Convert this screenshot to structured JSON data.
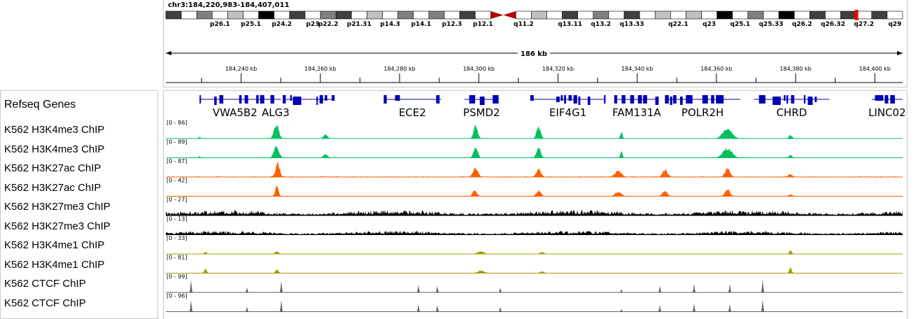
{
  "locus": "chr3:184,220,983-184,407,011",
  "view": {
    "start": 184220983,
    "end": 184407011
  },
  "span_label": "186 kb",
  "ideogram": {
    "bands": [
      {
        "stain": "gray75"
      },
      {
        "stain": "white"
      },
      {
        "stain": "gray50"
      },
      {
        "stain": "white",
        "label": "p26.1"
      },
      {
        "stain": "gray25"
      },
      {
        "stain": "white",
        "label": "p25.1"
      },
      {
        "stain": "black"
      },
      {
        "stain": "white",
        "label": "p24.2"
      },
      {
        "stain": "gray75"
      },
      {
        "stain": "white",
        "label": "p23"
      },
      {
        "stain": "gray50",
        "label": "p22.2"
      },
      {
        "stain": "gray75"
      },
      {
        "stain": "white",
        "label": "p21.31"
      },
      {
        "stain": "gray25"
      },
      {
        "stain": "white",
        "label": "p14.3"
      },
      {
        "stain": "gray50"
      },
      {
        "stain": "white",
        "label": "p14.1"
      },
      {
        "stain": "gray50"
      },
      {
        "stain": "white",
        "label": "p12.3"
      },
      {
        "stain": "gray75"
      },
      {
        "stain": "white",
        "label": "p12.1"
      },
      {
        "stain": "cen"
      },
      {
        "stain": "white",
        "label": "q11.2"
      },
      {
        "stain": "gray25"
      },
      {
        "stain": "white"
      },
      {
        "stain": "gray75",
        "label": "q13.11"
      },
      {
        "stain": "white"
      },
      {
        "stain": "gray50",
        "label": "q13.2"
      },
      {
        "stain": "white"
      },
      {
        "stain": "gray75",
        "label": "q13.33"
      },
      {
        "stain": "white"
      },
      {
        "stain": "gray25"
      },
      {
        "stain": "white",
        "label": "q22.1"
      },
      {
        "stain": "gray25"
      },
      {
        "stain": "white",
        "label": "q23"
      },
      {
        "stain": "black"
      },
      {
        "stain": "white",
        "label": "q25.1"
      },
      {
        "stain": "gray50"
      },
      {
        "stain": "white",
        "label": "q25.33"
      },
      {
        "stain": "black"
      },
      {
        "stain": "white",
        "label": "q26.2"
      },
      {
        "stain": "gray75"
      },
      {
        "stain": "white",
        "label": "q26.32"
      },
      {
        "stain": "gray75"
      },
      {
        "stain": "white",
        "label": "q27.2"
      },
      {
        "stain": "gray75"
      },
      {
        "stain": "white",
        "label": "q29"
      }
    ],
    "current_region_color": "#ff0000"
  },
  "ruler": {
    "ticks_kb": [
      184240,
      184260,
      184280,
      184300,
      184320,
      184340,
      184360,
      184380,
      184400
    ],
    "tick_labels": [
      "184,240 kb",
      "184,260 kb",
      "184,280 kb",
      "184,300 kb",
      "184,320 kb",
      "184,340 kb",
      "184,360 kb",
      "184,380 kb",
      "184,400 kb"
    ]
  },
  "genes_track": {
    "name": "Refseq Genes",
    "color": "#0000b2",
    "genes": [
      {
        "name": "VWA5B2",
        "start_kb": 184229.5,
        "end_kb": 184247.4
      },
      {
        "name": "ALG3",
        "start_kb": 184247.4,
        "end_kb": 184250.0
      },
      {
        "name": "",
        "start_kb": 184250.5,
        "end_kb": 184263.6
      },
      {
        "name": "ECE2",
        "start_kb": 184276.0,
        "end_kb": 184290.5
      },
      {
        "name": "PSMD2",
        "start_kb": 184296.4,
        "end_kb": 184305.0
      },
      {
        "name": "EIF4G1",
        "start_kb": 184313.0,
        "end_kb": 184332.0
      },
      {
        "name": "FAM131A",
        "start_kb": 184334.2,
        "end_kb": 184345.5
      },
      {
        "name": "POLR2H",
        "start_kb": 184347.0,
        "end_kb": 184366.0
      },
      {
        "name": "CHRD",
        "start_kb": 184369.5,
        "end_kb": 184388.5
      },
      {
        "name": "LINC02",
        "start_kb": 184399.2,
        "end_kb": 184407.0
      }
    ]
  },
  "tracks": [
    {
      "name": "K562 H3K4me3 ChIP",
      "range": "[0 - 86]",
      "color": "#00c060",
      "noise": 0.01,
      "peaks": [
        [
          184229.5,
          0.1,
          0.4
        ],
        [
          184248.9,
          0.75,
          1.2
        ],
        [
          184261.3,
          0.25,
          1
        ],
        [
          184299.2,
          0.7,
          1
        ],
        [
          184315.1,
          0.65,
          1
        ],
        [
          184336.0,
          0.4,
          0.5
        ],
        [
          184362.8,
          0.6,
          2.2
        ],
        [
          184378.7,
          0.2,
          0.8
        ]
      ]
    },
    {
      "name": "K562 H3K4me3 ChIP",
      "range": "[0 - 89]",
      "color": "#00c060",
      "noise": 0.01,
      "peaks": [
        [
          184229.5,
          0.1,
          0.4
        ],
        [
          184248.9,
          0.7,
          1.2
        ],
        [
          184261.3,
          0.2,
          1
        ],
        [
          184299.2,
          0.65,
          1
        ],
        [
          184315.1,
          0.6,
          1
        ],
        [
          184336.0,
          0.35,
          0.5
        ],
        [
          184362.8,
          0.55,
          2.2
        ],
        [
          184378.7,
          0.15,
          0.8
        ]
      ]
    },
    {
      "name": "K562 H3K27ac ChIP",
      "range": "[0 - 87]",
      "color": "#ff6000",
      "noise": 0.05,
      "peaks": [
        [
          184249.2,
          0.8,
          1
        ],
        [
          184299.2,
          0.5,
          1.2
        ],
        [
          184315.1,
          0.4,
          1.2
        ],
        [
          184335.2,
          0.35,
          1.5
        ],
        [
          184347.0,
          0.4,
          1.2
        ],
        [
          184362.8,
          0.5,
          1.2
        ],
        [
          184378.7,
          0.15,
          1
        ]
      ]
    },
    {
      "name": "K562 H3K27ac ChIP",
      "range": "[0 - 42]",
      "color": "#ff6000",
      "noise": 0.01,
      "peaks": [
        [
          184249.0,
          0.6,
          0.8
        ],
        [
          184299.0,
          0.35,
          1
        ],
        [
          184315.1,
          0.3,
          1.2
        ],
        [
          184335.2,
          0.25,
          1.5
        ],
        [
          184347.0,
          0.3,
          1.2
        ],
        [
          184362.8,
          0.4,
          1.2
        ],
        [
          184378.7,
          0.1,
          1
        ]
      ]
    },
    {
      "name": "K562 H3K27me3 ChIP",
      "range": "[0 - 27]",
      "color": "#000000",
      "noise": 0.35,
      "peaks": []
    },
    {
      "name": "K562 H3K27me3 ChIP",
      "range": "[0 - 13]",
      "color": "#000000",
      "noise": 0.25,
      "peaks": []
    },
    {
      "name": "K562 H3K4me1 ChIP",
      "range": "[0 - 33]",
      "color": "#a0a000",
      "noise": 0.02,
      "peaks": [
        [
          184231.0,
          0.12,
          0.6
        ],
        [
          184249.0,
          0.15,
          0.8
        ],
        [
          184300.5,
          0.15,
          1.5
        ],
        [
          184316.0,
          0.1,
          1
        ],
        [
          184378.7,
          0.2,
          0.6
        ]
      ]
    },
    {
      "name": "K562 H3K4me1 ChIP",
      "range": "[0 - 81]",
      "color": "#a0a000",
      "noise": 0.02,
      "peaks": [
        [
          184231.0,
          0.25,
          0.6
        ],
        [
          184249.0,
          0.2,
          0.8
        ],
        [
          184300.5,
          0.15,
          1.5
        ],
        [
          184316.0,
          0.1,
          1
        ],
        [
          184378.7,
          0.3,
          0.6
        ]
      ]
    },
    {
      "name": "K562 CTCF ChIP",
      "range": "[0 - 99]",
      "color": "#606060",
      "noise": 0.0,
      "spikes": [
        [
          184227.3,
          0.75
        ],
        [
          184241.5,
          0.3
        ],
        [
          184250.1,
          0.7
        ],
        [
          184284.8,
          0.45
        ],
        [
          184289.5,
          0.4
        ],
        [
          184305.4,
          0.3
        ],
        [
          184336.0,
          0.2
        ],
        [
          184345.7,
          0.4
        ],
        [
          184354.4,
          0.5
        ],
        [
          184363.4,
          0.5
        ],
        [
          184371.7,
          0.8
        ]
      ]
    },
    {
      "name": "K562 CTCF ChIP",
      "range": "[0 - 96]",
      "color": "#606060",
      "noise": 0.0,
      "spikes": [
        [
          184227.3,
          0.7
        ],
        [
          184241.5,
          0.3
        ],
        [
          184250.1,
          0.7
        ],
        [
          184284.8,
          0.45
        ],
        [
          184289.5,
          0.4
        ],
        [
          184305.4,
          0.3
        ],
        [
          184336.0,
          0.15
        ],
        [
          184345.7,
          0.4
        ],
        [
          184354.4,
          0.5
        ],
        [
          184363.4,
          0.45
        ],
        [
          184371.7,
          0.75
        ]
      ]
    }
  ]
}
